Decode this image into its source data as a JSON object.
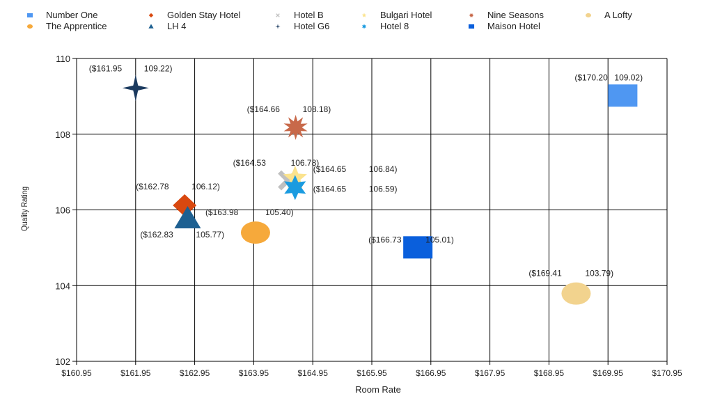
{
  "chart_data": {
    "type": "scatter",
    "xlabel": "Room Rate",
    "ylabel": "Quality Rating",
    "xlim": [
      160.95,
      170.95
    ],
    "ylim": [
      102,
      110
    ],
    "xticks": [
      "$160.95",
      "$161.95",
      "$162.95",
      "$163.95",
      "$164.95",
      "$165.95",
      "$166.95",
      "$167.95",
      "$168.95",
      "$169.95",
      "$170.95"
    ],
    "xtick_values": [
      160.95,
      161.95,
      162.95,
      163.95,
      164.95,
      165.95,
      166.95,
      167.95,
      168.95,
      169.95,
      170.95
    ],
    "yticks": [
      "102",
      "104",
      "106",
      "108",
      "110"
    ],
    "ytick_values": [
      102,
      104,
      106,
      108,
      110
    ],
    "grid": true,
    "legend_position": "top",
    "series": [
      {
        "name": "Number One",
        "marker": "square",
        "color": "#4f97f2",
        "x": 170.2,
        "y": 109.02,
        "label_x": "($170.20",
        "label_y": "109.02)"
      },
      {
        "name": "Golden Stay Hotel",
        "marker": "diamond",
        "color": "#d9480f",
        "x": 162.78,
        "y": 106.12,
        "label_x": "($162.78",
        "label_y": "106.12)"
      },
      {
        "name": "Hotel B",
        "marker": "x",
        "color": "#c0c0c0",
        "x": 164.53,
        "y": 106.78,
        "label_x": "($164.53",
        "label_y": "106.78)"
      },
      {
        "name": "Bulgari Hotel",
        "marker": "star5",
        "color": "#fbe38e",
        "x": 164.65,
        "y": 106.84,
        "label_x": "($164.65",
        "label_y": "106.84)"
      },
      {
        "name": "Nine Seasons",
        "marker": "star10",
        "color": "#c8694a",
        "x": 164.66,
        "y": 108.18,
        "label_x": "($164.66",
        "label_y": "108.18)"
      },
      {
        "name": "A Lofty",
        "marker": "ellipse",
        "color": "#f2d38e",
        "x": 169.41,
        "y": 103.79,
        "label_x": "($169.41",
        "label_y": "103.79)"
      },
      {
        "name": "The Apprentice",
        "marker": "circle",
        "color": "#f6a93b",
        "x": 163.98,
        "y": 105.4,
        "label_x": "($163.98",
        "label_y": "105.40)"
      },
      {
        "name": "LH 4",
        "marker": "triangle",
        "color": "#1e6091",
        "x": 162.83,
        "y": 105.77,
        "label_x": "($162.83",
        "label_y": "105.77)"
      },
      {
        "name": "Hotel G6",
        "marker": "star4",
        "color": "#1b3a5f",
        "x": 161.95,
        "y": 109.22,
        "label_x": "($161.95",
        "label_y": "109.22)"
      },
      {
        "name": "Hotel 8",
        "marker": "star6",
        "color": "#1a9be0",
        "x": 164.65,
        "y": 106.59,
        "label_x": "($164.65",
        "label_y": "106.59)"
      },
      {
        "name": "Maison Hotel",
        "marker": "square",
        "color": "#0a5fdc",
        "x": 166.73,
        "y": 105.01,
        "label_x": "($166.73",
        "label_y": "105.01)"
      }
    ]
  }
}
